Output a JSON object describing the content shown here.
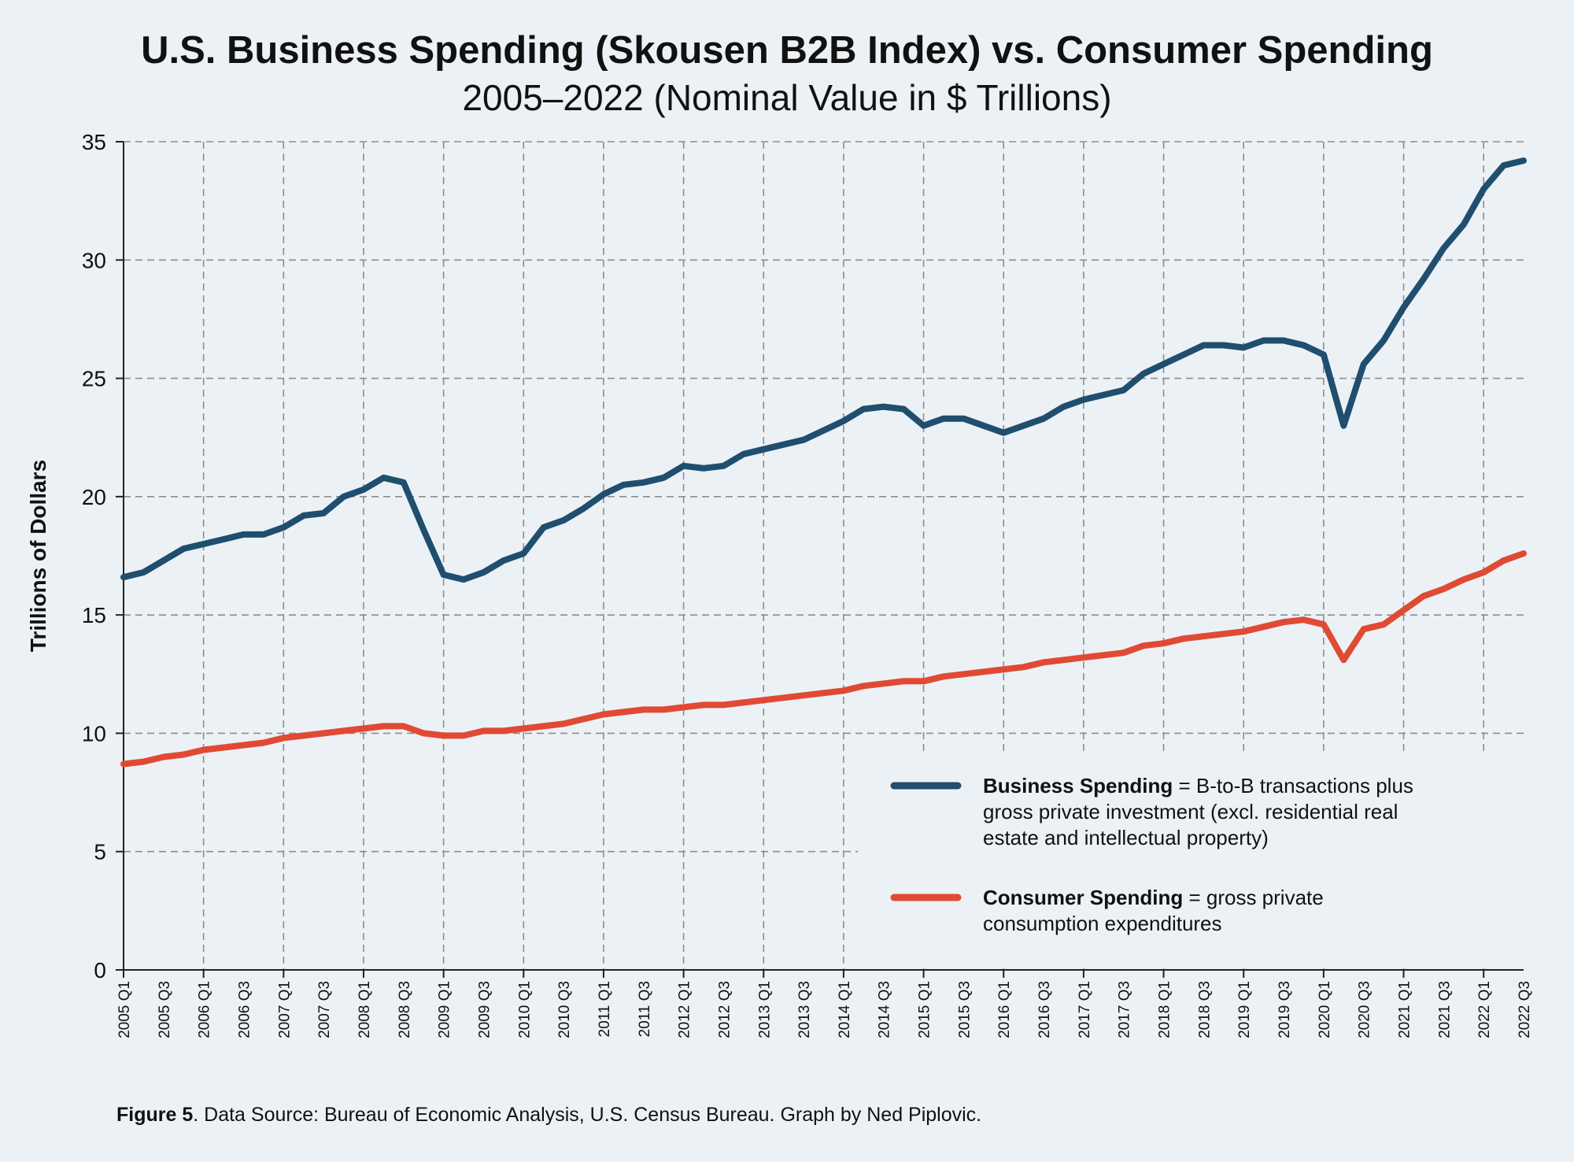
{
  "chart_data": {
    "type": "line",
    "title": "U.S. Business Spending (Skousen B2B Index) vs. Consumer Spending",
    "subtitle": "2005–2022 (Nominal Value in $ Trillions)",
    "xlabel": "",
    "ylabel": "Trillions of Dollars",
    "ylim": [
      0,
      35
    ],
    "yticks": [
      0,
      5,
      10,
      15,
      20,
      25,
      30,
      35
    ],
    "grid": true,
    "legend_position": "bottom-right",
    "x": [
      "2005 Q1",
      "2005 Q2",
      "2005 Q3",
      "2005 Q4",
      "2006 Q1",
      "2006 Q2",
      "2006 Q3",
      "2006 Q4",
      "2007 Q1",
      "2007 Q2",
      "2007 Q3",
      "2007 Q4",
      "2008 Q1",
      "2008 Q2",
      "2008 Q3",
      "2008 Q4",
      "2009 Q1",
      "2009 Q2",
      "2009 Q3",
      "2009 Q4",
      "2010 Q1",
      "2010 Q2",
      "2010 Q3",
      "2010 Q4",
      "2011 Q1",
      "2011 Q2",
      "2011 Q3",
      "2011 Q4",
      "2012 Q1",
      "2012 Q2",
      "2012 Q3",
      "2012 Q4",
      "2013 Q1",
      "2013 Q2",
      "2013 Q3",
      "2013 Q4",
      "2014 Q1",
      "2014 Q2",
      "2014 Q3",
      "2014 Q4",
      "2015 Q1",
      "2015 Q2",
      "2015 Q3",
      "2015 Q4",
      "2016 Q1",
      "2016 Q2",
      "2016 Q3",
      "2016 Q4",
      "2017 Q1",
      "2017 Q2",
      "2017 Q3",
      "2017 Q4",
      "2018 Q1",
      "2018 Q2",
      "2018 Q3",
      "2018 Q4",
      "2019 Q1",
      "2019 Q2",
      "2019 Q3",
      "2019 Q4",
      "2020 Q1",
      "2020 Q2",
      "2020 Q3",
      "2020 Q4",
      "2021 Q1",
      "2021 Q2",
      "2021 Q3",
      "2021 Q4",
      "2022 Q1",
      "2022 Q2",
      "2022 Q3"
    ],
    "xtick_labels": [
      "2005 Q1",
      "2005 Q3",
      "2006 Q1",
      "2006 Q3",
      "2007 Q1",
      "2007 Q3",
      "2008 Q1",
      "2008 Q3",
      "2009 Q1",
      "2009 Q3",
      "2010 Q1",
      "2010 Q3",
      "2011 Q1",
      "2011 Q3",
      "2012 Q1",
      "2012 Q3",
      "2013 Q1",
      "2013 Q3",
      "2014 Q1",
      "2014 Q3",
      "2015 Q1",
      "2015 Q3",
      "2016 Q1",
      "2016 Q3",
      "2017 Q1",
      "2017 Q3",
      "2018 Q1",
      "2018 Q3",
      "2019 Q1",
      "2019 Q3",
      "2020 Q1",
      "2020 Q3",
      "2021 Q1",
      "2021 Q3",
      "2022 Q1",
      "2022 Q3"
    ],
    "series": [
      {
        "name": "Business Spending",
        "color": "#1f4e6e",
        "values": [
          16.6,
          16.8,
          17.3,
          17.8,
          18.0,
          18.2,
          18.4,
          18.4,
          18.7,
          19.2,
          19.3,
          20.0,
          20.3,
          20.8,
          20.6,
          18.6,
          16.7,
          16.5,
          16.8,
          17.3,
          17.6,
          18.7,
          19.0,
          19.5,
          20.1,
          20.5,
          20.6,
          20.8,
          21.3,
          21.2,
          21.3,
          21.8,
          22.0,
          22.2,
          22.4,
          22.8,
          23.2,
          23.7,
          23.8,
          23.7,
          23.0,
          23.3,
          23.3,
          23.0,
          22.7,
          23.0,
          23.3,
          23.8,
          24.1,
          24.3,
          24.5,
          25.2,
          25.6,
          26.0,
          26.4,
          26.4,
          26.3,
          26.6,
          26.6,
          26.4,
          26.0,
          23.0,
          25.6,
          26.6,
          28.0,
          29.2,
          30.5,
          31.5,
          33.0,
          34.0,
          34.2
        ]
      },
      {
        "name": "Consumer Spending",
        "color": "#e04a35",
        "values": [
          8.7,
          8.8,
          9.0,
          9.1,
          9.3,
          9.4,
          9.5,
          9.6,
          9.8,
          9.9,
          10.0,
          10.1,
          10.2,
          10.3,
          10.3,
          10.0,
          9.9,
          9.9,
          10.1,
          10.1,
          10.2,
          10.3,
          10.4,
          10.6,
          10.8,
          10.9,
          11.0,
          11.0,
          11.1,
          11.2,
          11.2,
          11.3,
          11.4,
          11.5,
          11.6,
          11.7,
          11.8,
          12.0,
          12.1,
          12.2,
          12.2,
          12.4,
          12.5,
          12.6,
          12.7,
          12.8,
          13.0,
          13.1,
          13.2,
          13.3,
          13.4,
          13.7,
          13.8,
          14.0,
          14.1,
          14.2,
          14.3,
          14.5,
          14.7,
          14.8,
          14.6,
          13.1,
          14.4,
          14.6,
          15.2,
          15.8,
          16.1,
          16.5,
          16.8,
          17.3,
          17.6
        ]
      }
    ],
    "legend": [
      {
        "bold": "Business Spending",
        "lines": [
          " = B-to-B transactions plus",
          "gross private investment (excl. residential real",
          "estate and intellectual property)"
        ]
      },
      {
        "bold": "Consumer Spending",
        "lines": [
          " = gross private",
          "consumption expenditures"
        ]
      }
    ],
    "caption": {
      "bold": "Figure 5",
      "text": ". Data Source: Bureau of Economic Analysis, U.S. Census Bureau. Graph by Ned Piplovic."
    }
  }
}
